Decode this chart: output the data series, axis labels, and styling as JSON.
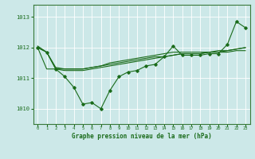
{
  "title": "Graphe pression niveau de la mer (hPa)",
  "bg_color": "#cce8e8",
  "grid_color": "#ffffff",
  "line_color": "#1a6b1a",
  "xlim": [
    -0.5,
    23.5
  ],
  "ylim": [
    1009.5,
    1013.4
  ],
  "yticks": [
    1010,
    1011,
    1012,
    1013
  ],
  "xticks": [
    0,
    1,
    2,
    3,
    4,
    5,
    6,
    7,
    8,
    9,
    10,
    11,
    12,
    13,
    14,
    15,
    16,
    17,
    18,
    19,
    20,
    21,
    22,
    23
  ],
  "series_jagged": [
    1012.0,
    1011.85,
    1011.3,
    1011.05,
    1010.7,
    1010.15,
    1010.2,
    1010.0,
    1010.6,
    1011.05,
    1011.2,
    1011.25,
    1011.4,
    1011.45,
    1011.7,
    1012.05,
    1011.75,
    1011.75,
    1011.75,
    1011.8,
    1011.8,
    1012.1,
    1012.85,
    1012.65
  ],
  "series_trend1": [
    1012.0,
    1011.85,
    1011.3,
    1011.25,
    1011.25,
    1011.25,
    1011.3,
    1011.35,
    1011.4,
    1011.45,
    1011.5,
    1011.55,
    1011.6,
    1011.65,
    1011.7,
    1011.75,
    1011.8,
    1011.8,
    1011.8,
    1011.85,
    1011.85,
    1011.85,
    1011.9,
    1011.9
  ],
  "series_trend2": [
    1012.0,
    1011.3,
    1011.3,
    1011.3,
    1011.3,
    1011.3,
    1011.35,
    1011.4,
    1011.45,
    1011.5,
    1011.55,
    1011.6,
    1011.65,
    1011.7,
    1011.7,
    1011.75,
    1011.8,
    1011.8,
    1011.8,
    1011.85,
    1011.85,
    1011.9,
    1011.95,
    1012.0
  ],
  "series_upper": [
    1012.05,
    1011.85,
    1011.35,
    1011.3,
    1011.3,
    1011.3,
    1011.35,
    1011.4,
    1011.5,
    1011.55,
    1011.6,
    1011.65,
    1011.7,
    1011.75,
    1011.8,
    1011.85,
    1011.85,
    1011.85,
    1011.85,
    1011.85,
    1011.9,
    1011.9,
    1011.95,
    1012.0
  ]
}
